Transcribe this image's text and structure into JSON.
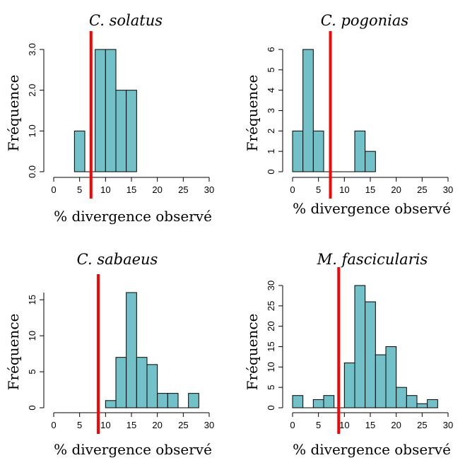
{
  "colors": {
    "bar_fill": "#72c0c8",
    "bar_edge": "#000000",
    "reference_line": "#ff0000"
  },
  "chart_data": [
    {
      "type": "bar",
      "title": "C. solatus",
      "xlabel": "% divergence observé",
      "ylabel": "Fréquence",
      "xlim": [
        0,
        30
      ],
      "ylim": [
        0,
        3
      ],
      "xticks": [
        0,
        5,
        10,
        15,
        20,
        25,
        30
      ],
      "yticks": [
        "0.0",
        "1.0",
        "2.0",
        "3.0"
      ],
      "bins": [
        [
          4,
          6,
          1
        ],
        [
          6,
          8,
          0
        ],
        [
          8,
          10,
          3
        ],
        [
          10,
          12,
          3
        ],
        [
          12,
          14,
          2
        ],
        [
          14,
          16,
          2
        ]
      ],
      "reference_line": 7.2
    },
    {
      "type": "bar",
      "title": "C. pogonias",
      "xlabel": "% divergence observé",
      "ylabel": "Fréquence",
      "xlim": [
        0,
        30
      ],
      "ylim": [
        0,
        6
      ],
      "xticks": [
        0,
        5,
        10,
        15,
        20,
        25,
        30
      ],
      "yticks": [
        "0",
        "1",
        "2",
        "3",
        "4",
        "5",
        "6"
      ],
      "bins": [
        [
          0,
          2,
          2
        ],
        [
          2,
          4,
          6
        ],
        [
          4,
          6,
          2
        ],
        [
          6,
          8,
          0
        ],
        [
          8,
          10,
          0
        ],
        [
          10,
          12,
          0
        ],
        [
          12,
          14,
          2
        ],
        [
          14,
          16,
          1
        ]
      ],
      "reference_line": 7.3
    },
    {
      "type": "bar",
      "title": "C. sabaeus",
      "xlabel": "% divergence observé",
      "ylabel": "Fréquence",
      "xlim": [
        0,
        30
      ],
      "ylim": [
        0,
        16
      ],
      "xticks": [
        0,
        5,
        10,
        15,
        20,
        25,
        30
      ],
      "yticks": [
        "0",
        "5",
        "10",
        "15"
      ],
      "bins": [
        [
          10,
          12,
          1
        ],
        [
          12,
          14,
          7
        ],
        [
          14,
          16,
          16
        ],
        [
          16,
          18,
          7
        ],
        [
          18,
          20,
          6
        ],
        [
          20,
          22,
          2
        ],
        [
          22,
          24,
          2
        ],
        [
          24,
          26,
          0
        ],
        [
          26,
          28,
          2
        ]
      ],
      "reference_line": 8.6
    },
    {
      "type": "bar",
      "title": "M. fascicularis",
      "xlabel": "% divergence observé",
      "ylabel": "Fréquence",
      "xlim": [
        0,
        30
      ],
      "ylim": [
        0,
        30
      ],
      "xticks": [
        0,
        5,
        10,
        15,
        20,
        25,
        30
      ],
      "yticks": [
        "0",
        "5",
        "10",
        "15",
        "20",
        "25",
        "30"
      ],
      "bins": [
        [
          0,
          2,
          3
        ],
        [
          2,
          4,
          0
        ],
        [
          4,
          6,
          2
        ],
        [
          6,
          8,
          3
        ],
        [
          8,
          10,
          0
        ],
        [
          10,
          12,
          11
        ],
        [
          12,
          14,
          30
        ],
        [
          14,
          16,
          26
        ],
        [
          16,
          18,
          13
        ],
        [
          18,
          20,
          15
        ],
        [
          20,
          22,
          5
        ],
        [
          22,
          24,
          3
        ],
        [
          24,
          26,
          1
        ],
        [
          26,
          28,
          2
        ]
      ],
      "reference_line": 8.9
    }
  ]
}
